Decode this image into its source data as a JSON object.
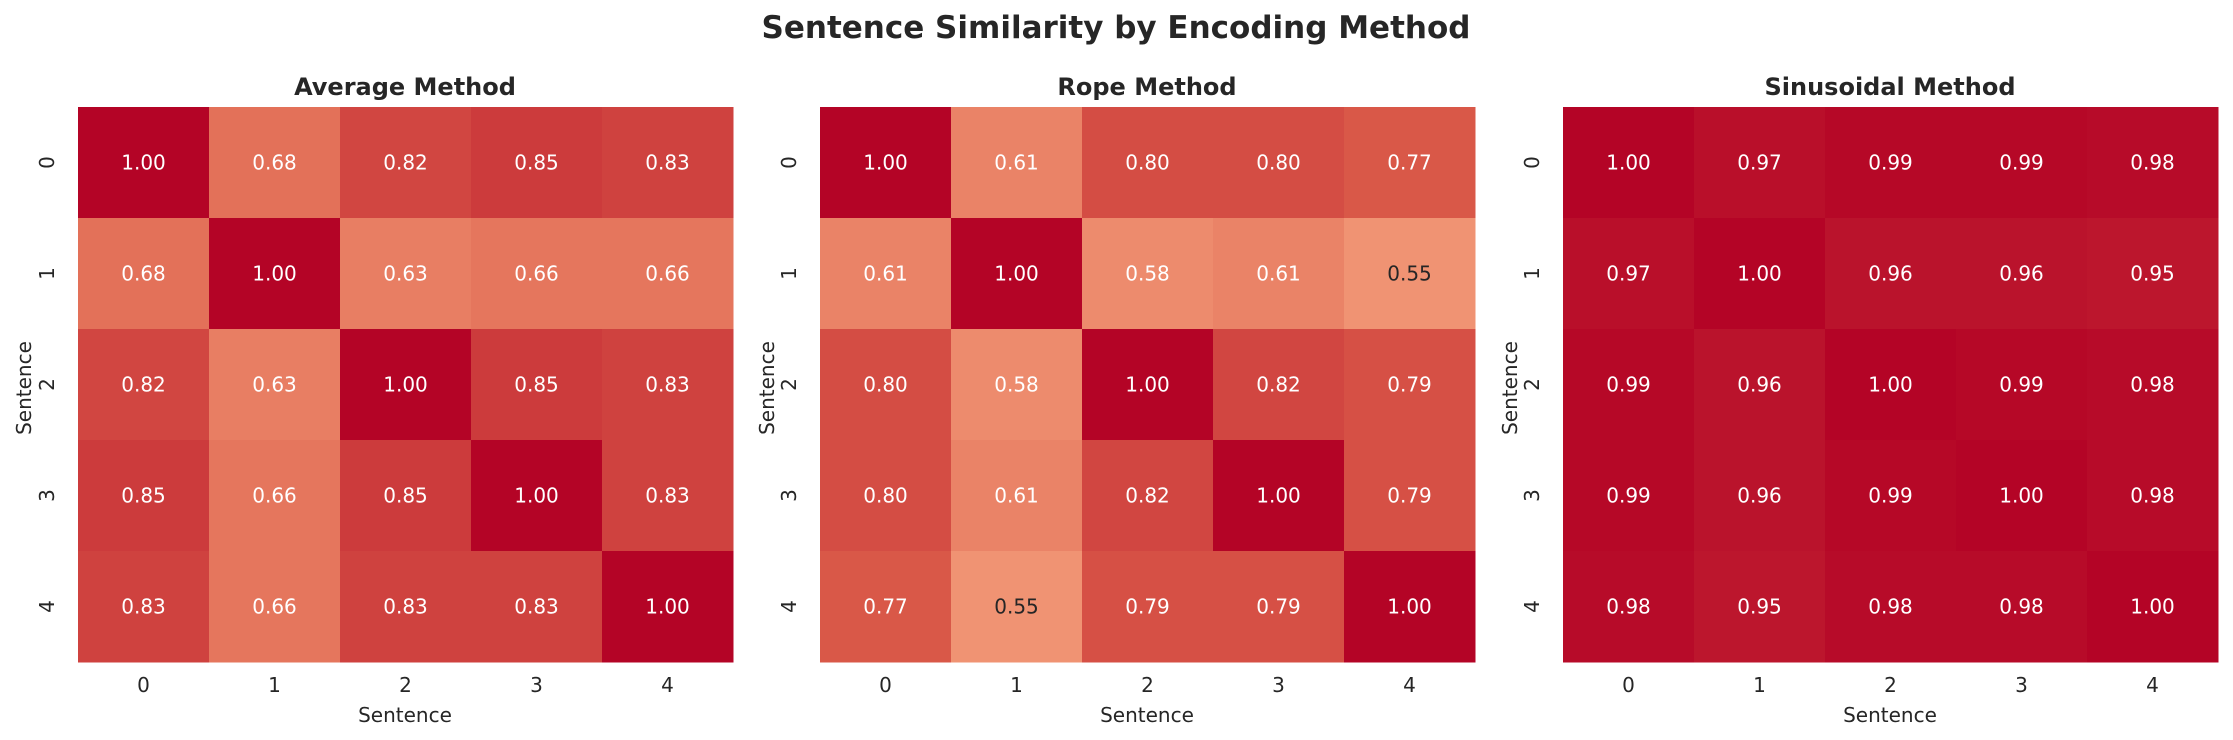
{
  "figure": {
    "title": "Sentence Similarity by Encoding Method"
  },
  "chart_data": [
    {
      "type": "heatmap",
      "title": "Average Method",
      "xlabel": "Sentence",
      "ylabel": "Sentence",
      "x_ticks": [
        "0",
        "1",
        "2",
        "3",
        "4"
      ],
      "y_ticks": [
        "0",
        "1",
        "2",
        "3",
        "4"
      ],
      "values": [
        [
          1.0,
          0.68,
          0.82,
          0.85,
          0.83
        ],
        [
          0.68,
          1.0,
          0.63,
          0.66,
          0.66
        ],
        [
          0.82,
          0.63,
          1.0,
          0.85,
          0.83
        ],
        [
          0.85,
          0.66,
          0.85,
          1.0,
          0.83
        ],
        [
          0.83,
          0.66,
          0.83,
          0.83,
          1.0
        ]
      ],
      "value_format": "0.00",
      "colormap": "coolwarm",
      "colorbar": false
    },
    {
      "type": "heatmap",
      "title": "Rope Method",
      "xlabel": "Sentence",
      "ylabel": "Sentence",
      "x_ticks": [
        "0",
        "1",
        "2",
        "3",
        "4"
      ],
      "y_ticks": [
        "0",
        "1",
        "2",
        "3",
        "4"
      ],
      "values": [
        [
          1.0,
          0.61,
          0.8,
          0.8,
          0.77
        ],
        [
          0.61,
          1.0,
          0.58,
          0.61,
          0.55
        ],
        [
          0.8,
          0.58,
          1.0,
          0.82,
          0.79
        ],
        [
          0.8,
          0.61,
          0.82,
          1.0,
          0.79
        ],
        [
          0.77,
          0.55,
          0.79,
          0.79,
          1.0
        ]
      ],
      "value_format": "0.00",
      "colormap": "coolwarm",
      "colorbar": false
    },
    {
      "type": "heatmap",
      "title": "Sinusoidal Method",
      "xlabel": "Sentence",
      "ylabel": "Sentence",
      "x_ticks": [
        "0",
        "1",
        "2",
        "3",
        "4"
      ],
      "y_ticks": [
        "0",
        "1",
        "2",
        "3",
        "4"
      ],
      "values": [
        [
          1.0,
          0.97,
          0.99,
          0.99,
          0.98
        ],
        [
          0.97,
          1.0,
          0.96,
          0.96,
          0.95
        ],
        [
          0.99,
          0.96,
          1.0,
          0.99,
          0.98
        ],
        [
          0.99,
          0.96,
          0.99,
          1.0,
          0.98
        ],
        [
          0.98,
          0.95,
          0.98,
          0.98,
          1.0
        ]
      ],
      "value_format": "0.00",
      "colormap": "coolwarm",
      "colorbar": false
    }
  ],
  "colors": {
    "text_dark": "#262626",
    "cell_text_light": "#ffffff",
    "cell_text_dark": "#262626"
  }
}
